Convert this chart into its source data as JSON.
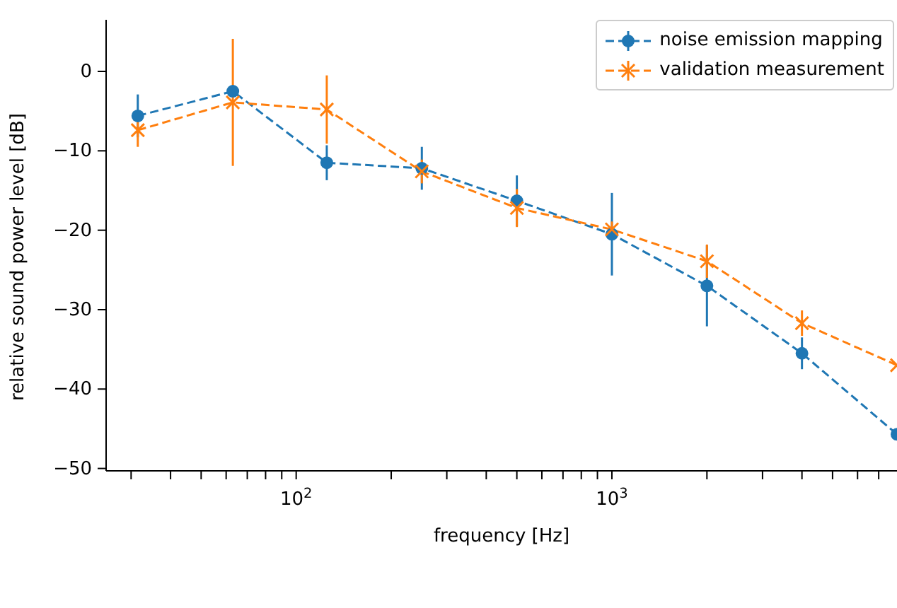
{
  "chart_data": {
    "type": "line",
    "xlabel": "frequency [Hz]",
    "ylabel": "relative sound power level [dB]",
    "log": "x",
    "x": [
      31.5,
      63,
      125,
      250,
      500,
      1000,
      2000,
      4000,
      8000
    ],
    "xlim": [
      25,
      8000
    ],
    "ylim": [
      -50.3,
      6.5
    ],
    "xticks": [
      {
        "value": 30,
        "label": null
      },
      {
        "value": 40,
        "label": null
      },
      {
        "value": 50,
        "label": null
      },
      {
        "value": 60,
        "label": null
      },
      {
        "value": 70,
        "label": null
      },
      {
        "value": 80,
        "label": null
      },
      {
        "value": 90,
        "label": null
      },
      {
        "value": 100,
        "label": "10$^{2}$"
      },
      {
        "value": 200,
        "label": null
      },
      {
        "value": 300,
        "label": null
      },
      {
        "value": 400,
        "label": null
      },
      {
        "value": 500,
        "label": null
      },
      {
        "value": 600,
        "label": null
      },
      {
        "value": 700,
        "label": null
      },
      {
        "value": 800,
        "label": null
      },
      {
        "value": 900,
        "label": null
      },
      {
        "value": 1000,
        "label": "10$^{3}$"
      },
      {
        "value": 2000,
        "label": null
      },
      {
        "value": 3000,
        "label": null
      },
      {
        "value": 4000,
        "label": null
      },
      {
        "value": 5000,
        "label": null
      },
      {
        "value": 6000,
        "label": null
      },
      {
        "value": 7000,
        "label": null
      }
    ],
    "yticks": [
      0,
      -10,
      -20,
      -30,
      -40,
      -50
    ],
    "legend": "top right",
    "line_style": "dashed",
    "series": [
      {
        "name": "noise emission mapping",
        "color": "#1f77b4",
        "marker": "circle",
        "values": [
          -5.6,
          -2.5,
          -11.5,
          -12.2,
          -16.3,
          -20.5,
          -27.0,
          -35.5,
          -45.7
        ],
        "errors": [
          2.7,
          null,
          2.2,
          2.7,
          3.2,
          5.2,
          5.1,
          2.0,
          null
        ]
      },
      {
        "name": "validation measurement",
        "color": "#ff7f0e",
        "marker": "cross",
        "values": [
          -7.4,
          -3.9,
          -4.8,
          -12.6,
          -17.2,
          -19.9,
          -23.9,
          -31.7,
          -37.0
        ],
        "errors": [
          2.1,
          8.0,
          4.3,
          1.5,
          2.4,
          1.0,
          2.1,
          1.6,
          null
        ]
      }
    ]
  }
}
